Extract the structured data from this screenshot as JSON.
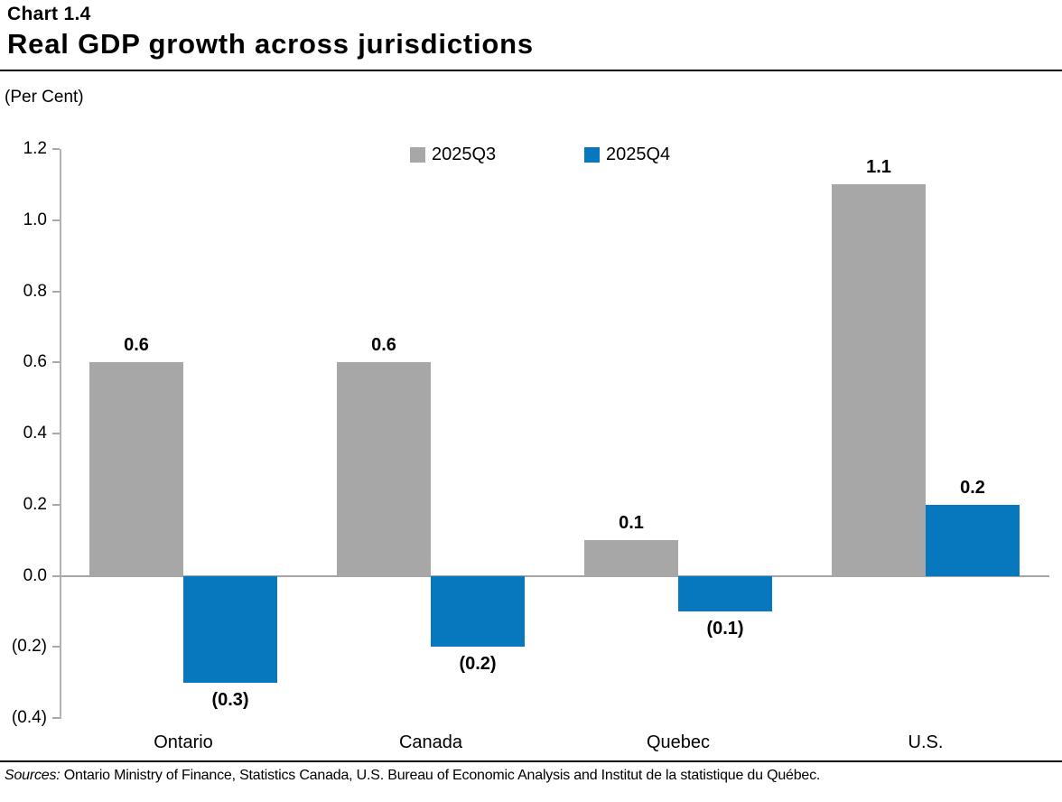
{
  "header": {
    "chart_number": "Chart 1.4",
    "title": "Real GDP growth across jurisdictions"
  },
  "chart_data": {
    "type": "bar",
    "title": "Real GDP growth across jurisdictions",
    "unit_label": "(Per Cent)",
    "categories": [
      "Ontario",
      "Canada",
      "Quebec",
      "U.S."
    ],
    "series": [
      {
        "name": "2025Q3",
        "color": "#a7a7a7",
        "values": [
          0.6,
          0.6,
          0.1,
          1.1
        ],
        "value_labels": [
          "0.6",
          "0.6",
          "0.1",
          "1.1"
        ]
      },
      {
        "name": "2025Q4",
        "color": "#0778be",
        "values": [
          -0.3,
          -0.2,
          -0.1,
          0.2
        ],
        "value_labels": [
          "(0.3)",
          "(0.2)",
          "(0.1)",
          "0.2"
        ]
      }
    ],
    "ylim": [
      -0.4,
      1.2
    ],
    "yticks": [
      {
        "value": 1.2,
        "label": "1.2"
      },
      {
        "value": 1.0,
        "label": "1.0"
      },
      {
        "value": 0.8,
        "label": "0.8"
      },
      {
        "value": 0.6,
        "label": "0.6"
      },
      {
        "value": 0.4,
        "label": "0.4"
      },
      {
        "value": 0.2,
        "label": "0.2"
      },
      {
        "value": 0.0,
        "label": "0.0"
      },
      {
        "value": -0.2,
        "label": "(0.2)"
      },
      {
        "value": -0.4,
        "label": "(0.4)"
      }
    ],
    "legend_position": "top-center",
    "grid": false,
    "axis_color": "#a6a6a6",
    "negative_format": "parentheses"
  },
  "footer": {
    "sources_prefix": "Sources:",
    "sources_rest": "Ontario Ministry of Finance, Statistics Canada, U.S. Bureau of Economic Analysis and Institut de la statistique du Québec."
  }
}
